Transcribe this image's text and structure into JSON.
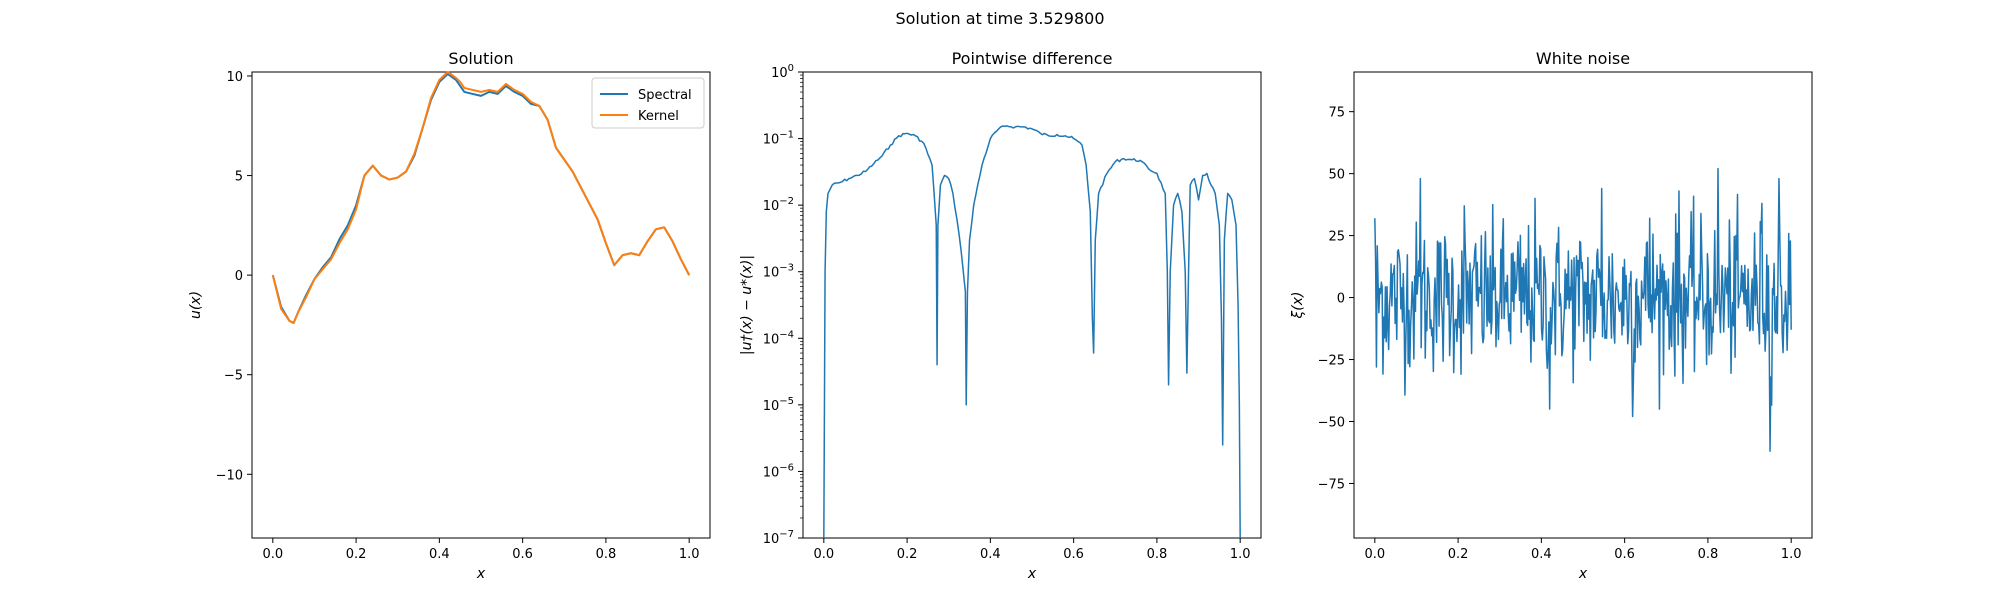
{
  "figure": {
    "suptitle": "Solution at time 3.529800"
  },
  "colors": {
    "spectral": "#1f77b4",
    "kernel": "#ff7f0e",
    "noise": "#1f77b4",
    "diff": "#1f77b4"
  },
  "chart_data": [
    {
      "type": "line",
      "title": "Solution",
      "xlabel": "x",
      "ylabel": "u(x)",
      "xlim": [
        -0.05,
        1.05
      ],
      "ylim": [
        -13.2,
        10.2
      ],
      "xticks": [
        0.0,
        0.2,
        0.4,
        0.6,
        0.8,
        1.0
      ],
      "xtick_labels": [
        "0.0",
        "0.2",
        "0.4",
        "0.6",
        "0.8",
        "1.0"
      ],
      "yticks": [
        10,
        5,
        0,
        -5,
        -10
      ],
      "ytick_labels": [
        "10",
        "5",
        "0",
        "−5",
        "−10"
      ],
      "legend": {
        "placement": "top-right",
        "entries": [
          "Spectral",
          "Kernel"
        ]
      },
      "series": [
        {
          "name": "Spectral",
          "x": [
            0.0,
            0.02,
            0.04,
            0.05,
            0.06,
            0.08,
            0.1,
            0.12,
            0.14,
            0.16,
            0.18,
            0.2,
            0.22,
            0.24,
            0.26,
            0.28,
            0.3,
            0.32,
            0.34,
            0.36,
            0.38,
            0.4,
            0.42,
            0.44,
            0.45,
            0.46,
            0.48,
            0.5,
            0.52,
            0.54,
            0.56,
            0.58,
            0.6,
            0.62,
            0.64,
            0.66,
            0.68,
            0.7,
            0.72,
            0.74,
            0.76,
            0.78,
            0.8,
            0.82,
            0.84,
            0.86,
            0.88,
            0.9,
            0.92,
            0.94,
            0.96,
            0.98,
            1.0
          ],
          "y": [
            0.0,
            -1.6,
            -2.3,
            -2.4,
            -1.9,
            -1.0,
            -0.2,
            0.4,
            0.9,
            1.8,
            2.5,
            3.5,
            5.0,
            5.5,
            5.0,
            4.8,
            4.9,
            5.2,
            6.0,
            7.4,
            8.8,
            9.7,
            10.1,
            9.8,
            9.5,
            9.2,
            9.1,
            9.0,
            9.2,
            9.1,
            9.5,
            9.2,
            9.0,
            8.6,
            8.5,
            7.8,
            6.4,
            5.8,
            5.2,
            4.4,
            3.6,
            2.8,
            1.6,
            0.5,
            1.0,
            1.1,
            1.0,
            1.7,
            2.3,
            2.4,
            1.7,
            0.8,
            0.0
          ]
        },
        {
          "name": "Kernel",
          "x": [
            0.0,
            0.02,
            0.04,
            0.05,
            0.06,
            0.08,
            0.1,
            0.12,
            0.14,
            0.16,
            0.18,
            0.2,
            0.22,
            0.24,
            0.26,
            0.28,
            0.3,
            0.32,
            0.34,
            0.36,
            0.38,
            0.4,
            0.42,
            0.44,
            0.45,
            0.46,
            0.48,
            0.5,
            0.52,
            0.54,
            0.56,
            0.58,
            0.6,
            0.62,
            0.64,
            0.66,
            0.68,
            0.7,
            0.72,
            0.74,
            0.76,
            0.78,
            0.8,
            0.82,
            0.84,
            0.86,
            0.88,
            0.9,
            0.92,
            0.94,
            0.96,
            0.98,
            1.0
          ],
          "y": [
            0.0,
            -1.7,
            -2.3,
            -2.4,
            -1.9,
            -1.1,
            -0.2,
            0.3,
            0.8,
            1.6,
            2.3,
            3.3,
            5.0,
            5.5,
            5.0,
            4.8,
            4.9,
            5.2,
            6.1,
            7.4,
            8.9,
            9.8,
            10.2,
            9.9,
            9.7,
            9.4,
            9.3,
            9.2,
            9.3,
            9.2,
            9.6,
            9.3,
            9.1,
            8.7,
            8.5,
            7.8,
            6.4,
            5.8,
            5.2,
            4.4,
            3.6,
            2.8,
            1.6,
            0.5,
            1.0,
            1.1,
            1.0,
            1.7,
            2.3,
            2.4,
            1.7,
            0.8,
            0.0
          ]
        }
      ]
    },
    {
      "type": "line",
      "title": "Pointwise difference",
      "xlabel": "x",
      "ylabel": "|u†(x) − u*(x)|",
      "yscale": "log",
      "xlim": [
        -0.05,
        1.05
      ],
      "ylim": [
        1e-07,
        1
      ],
      "xticks": [
        0.0,
        0.2,
        0.4,
        0.6,
        0.8,
        1.0
      ],
      "xtick_labels": [
        "0.0",
        "0.2",
        "0.4",
        "0.6",
        "0.8",
        "1.0"
      ],
      "ytick_exponents": [
        0,
        -1,
        -2,
        -3,
        -4,
        -5,
        -6,
        -7
      ],
      "ytick_base": "10",
      "series": [
        {
          "x": [
            0.0,
            0.003,
            0.006,
            0.01,
            0.02,
            0.04,
            0.06,
            0.08,
            0.1,
            0.12,
            0.14,
            0.16,
            0.18,
            0.2,
            0.22,
            0.24,
            0.26,
            0.27,
            0.272,
            0.274,
            0.28,
            0.29,
            0.3,
            0.31,
            0.32,
            0.33,
            0.34,
            0.342,
            0.345,
            0.35,
            0.36,
            0.38,
            0.4,
            0.42,
            0.44,
            0.46,
            0.48,
            0.5,
            0.52,
            0.54,
            0.56,
            0.58,
            0.6,
            0.62,
            0.63,
            0.64,
            0.645,
            0.648,
            0.652,
            0.66,
            0.68,
            0.7,
            0.72,
            0.74,
            0.76,
            0.78,
            0.8,
            0.82,
            0.825,
            0.828,
            0.832,
            0.84,
            0.85,
            0.86,
            0.868,
            0.872,
            0.876,
            0.88,
            0.89,
            0.9,
            0.91,
            0.92,
            0.93,
            0.94,
            0.95,
            0.955,
            0.958,
            0.962,
            0.97,
            0.98,
            0.99,
            0.995,
            0.998,
            1.0
          ],
          "y": [
            1e-07,
            0.001,
            0.008,
            0.015,
            0.02,
            0.022,
            0.025,
            0.028,
            0.032,
            0.042,
            0.055,
            0.08,
            0.11,
            0.12,
            0.11,
            0.085,
            0.04,
            0.005,
            4e-05,
            0.005,
            0.02,
            0.028,
            0.025,
            0.015,
            0.006,
            0.002,
            0.0005,
            1e-05,
            0.0005,
            0.003,
            0.01,
            0.04,
            0.1,
            0.14,
            0.155,
            0.15,
            0.15,
            0.14,
            0.12,
            0.11,
            0.115,
            0.11,
            0.1,
            0.08,
            0.04,
            0.008,
            0.0002,
            6e-05,
            0.003,
            0.015,
            0.03,
            0.045,
            0.05,
            0.048,
            0.047,
            0.035,
            0.03,
            0.015,
            0.001,
            2e-05,
            0.001,
            0.01,
            0.015,
            0.008,
            0.001,
            3e-05,
            0.001,
            0.02,
            0.025,
            0.012,
            0.028,
            0.03,
            0.02,
            0.015,
            0.005,
            0.0002,
            2.5e-06,
            0.003,
            0.015,
            0.012,
            0.005,
            0.0003,
            1e-05,
            1e-07
          ]
        }
      ]
    },
    {
      "type": "line",
      "title": "White noise",
      "xlabel": "x",
      "ylabel": "ξ(x)",
      "xlim": [
        -0.05,
        1.05
      ],
      "ylim": [
        -97,
        91
      ],
      "xticks": [
        0.0,
        0.2,
        0.4,
        0.6,
        0.8,
        1.0
      ],
      "xtick_labels": [
        "0.0",
        "0.2",
        "0.4",
        "0.6",
        "0.8",
        "1.0"
      ],
      "yticks": [
        75,
        50,
        25,
        0,
        -25,
        -50,
        -75
      ],
      "ytick_labels": [
        "75",
        "50",
        "25",
        "0",
        "−25",
        "−50",
        "−75"
      ],
      "noise_std": 15,
      "noise_samples": 513,
      "highlight_peaks": [
        {
          "x": 0.0,
          "y": 32
        },
        {
          "x": 0.004,
          "y": -28
        },
        {
          "x": 0.11,
          "y": 48
        },
        {
          "x": 0.215,
          "y": 37
        },
        {
          "x": 0.385,
          "y": 40
        },
        {
          "x": 0.42,
          "y": -45
        },
        {
          "x": 0.545,
          "y": 44
        },
        {
          "x": 0.62,
          "y": -48
        },
        {
          "x": 0.66,
          "y": 32
        },
        {
          "x": 0.73,
          "y": 43
        },
        {
          "x": 0.825,
          "y": 52
        },
        {
          "x": 0.93,
          "y": 38
        },
        {
          "x": 0.95,
          "y": -62
        },
        {
          "x": 0.97,
          "y": 48
        },
        {
          "x": 1.0,
          "y": -13
        }
      ]
    }
  ]
}
